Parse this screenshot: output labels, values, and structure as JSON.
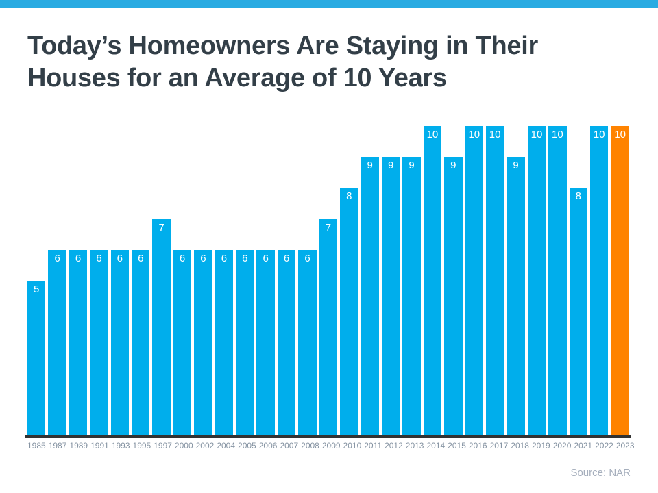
{
  "header": {
    "title_line1": "Today’s Homeowners Are Staying in Their",
    "title_line2": "Houses for an Average of 10 Years"
  },
  "footer": {
    "source_label": "Source: NAR"
  },
  "colors": {
    "top_stripe": "#29ABE2",
    "title_text": "#333F48",
    "bar": "#00AEEC",
    "bar_highlight": "#FF8300",
    "bar_value_text": "#FFFFFF",
    "axis_line": "#333333",
    "x_axis_label": "#8593A2",
    "source_text": "#A5AEBC"
  },
  "chart_data": {
    "type": "bar",
    "title": "Today’s Homeowners Are Staying in Their Houses for an Average of 10 Years",
    "categories": [
      "1985",
      "1987",
      "1989",
      "1991",
      "1993",
      "1995",
      "1997",
      "2000",
      "2002",
      "2004",
      "2005",
      "2006",
      "2007",
      "2008",
      "2009",
      "2010",
      "2011",
      "2012",
      "2013",
      "2014",
      "2015",
      "2016",
      "2017",
      "2018",
      "2019",
      "2020",
      "2021",
      "2022",
      "2023"
    ],
    "values": [
      5,
      6,
      6,
      6,
      6,
      6,
      7,
      6,
      6,
      6,
      6,
      6,
      6,
      6,
      7,
      8,
      9,
      9,
      9,
      10,
      9,
      10,
      10,
      9,
      10,
      10,
      8,
      10,
      10
    ],
    "highlight_index": 28,
    "xlabel": "",
    "ylabel": "",
    "ylim": [
      0,
      10
    ],
    "grid": false,
    "legend": "none",
    "value_labels": "inside-top",
    "source": "Source: NAR"
  }
}
